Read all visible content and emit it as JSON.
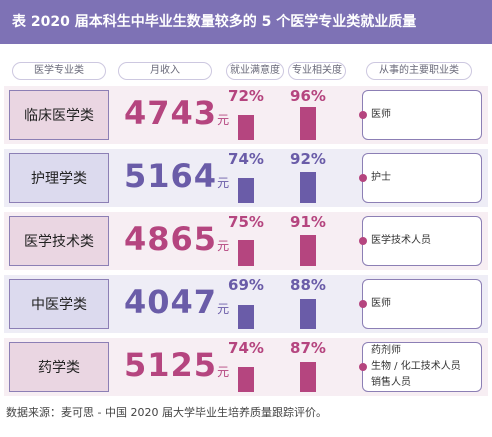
{
  "title": "表  2020 届本科生中毕业生数量较多的 5 个医学专业类就业质量",
  "headers": {
    "major": "医学专业类",
    "income": "月收入",
    "satisfaction": "就业满意度",
    "relevance": "专业相关度",
    "occupation": "从事的主要职业类"
  },
  "income_unit": "元",
  "colors": {
    "title_bg": "#7e72b5",
    "pink_value": "#b5457f",
    "purple_value": "#6a5ca8",
    "pink_band": "#f7eef3",
    "purple_band": "#eeedf6",
    "border": "#8c7fb5"
  },
  "source": "数据来源：麦可思 - 中国 2020 届大学毕业生培养质量跟踪评价。",
  "chart_data": {
    "type": "table",
    "title": "表  2020 届本科生中毕业生数量较多的 5 个医学专业类就业质量",
    "columns": [
      "医学专业类",
      "月收入",
      "就业满意度",
      "专业相关度",
      "从事的主要职业类"
    ],
    "rows": [
      {
        "major": "临床医学类",
        "income": 4743,
        "satisfaction": 72,
        "relevance": 96,
        "occupations": [
          "医师"
        ]
      },
      {
        "major": "护理学类",
        "income": 5164,
        "satisfaction": 74,
        "relevance": 92,
        "occupations": [
          "护士"
        ]
      },
      {
        "major": "医学技术类",
        "income": 4865,
        "satisfaction": 75,
        "relevance": 91,
        "occupations": [
          "医学技术人员"
        ]
      },
      {
        "major": "中医学类",
        "income": 4047,
        "satisfaction": 69,
        "relevance": 88,
        "occupations": [
          "医师"
        ]
      },
      {
        "major": "药学类",
        "income": 5125,
        "satisfaction": 74,
        "relevance": 87,
        "occupations": [
          "药剂师",
          "生物 / 化工技术人员",
          "销售人员"
        ]
      }
    ]
  }
}
